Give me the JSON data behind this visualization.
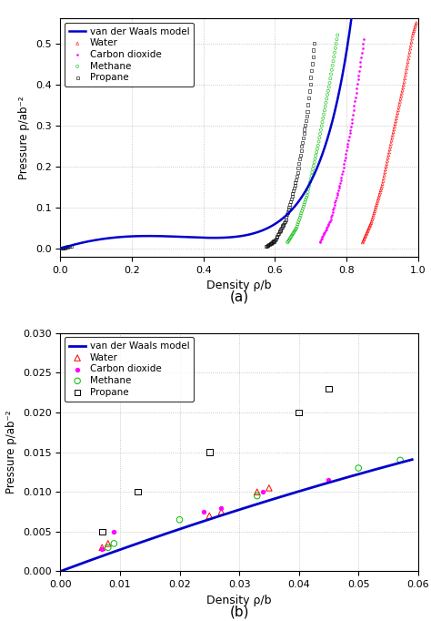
{
  "vdw_color": "#0000cc",
  "water_color": "#ff0000",
  "co2_color": "#ff00ff",
  "methane_color": "#00bb00",
  "propane_color": "#000000",
  "subplot_a": {
    "xlim": [
      0,
      1.0
    ],
    "ylim": [
      -0.02,
      0.56
    ],
    "yticks": [
      0.0,
      0.1,
      0.2,
      0.3,
      0.4,
      0.5
    ],
    "xticks": [
      0.0,
      0.2,
      0.4,
      0.6,
      0.8,
      1.0
    ],
    "xlabel": "Density ρ/b",
    "ylabel": "Pressure p/ab⁻²",
    "label": "(a)"
  },
  "subplot_b": {
    "xlim": [
      0,
      0.06
    ],
    "ylim": [
      0,
      0.03
    ],
    "yticks": [
      0.0,
      0.005,
      0.01,
      0.015,
      0.02,
      0.025,
      0.03
    ],
    "xticks": [
      0.0,
      0.01,
      0.02,
      0.03,
      0.04,
      0.05,
      0.06
    ],
    "xlabel": "Density ρ/b",
    "ylabel": "Pressure p/ab⁻²",
    "label": "(b)"
  },
  "water_b_rho": [
    0.007,
    0.008,
    0.025,
    0.027,
    0.033,
    0.035
  ],
  "water_b_p": [
    0.003,
    0.0035,
    0.007,
    0.0075,
    0.01,
    0.0105
  ],
  "co2_b_rho": [
    0.007,
    0.009,
    0.024,
    0.027,
    0.034,
    0.045
  ],
  "co2_b_p": [
    0.0028,
    0.005,
    0.0075,
    0.008,
    0.01,
    0.0115
  ],
  "methane_b_rho": [
    0.008,
    0.009,
    0.02,
    0.033,
    0.05,
    0.057
  ],
  "methane_b_p": [
    0.003,
    0.0035,
    0.0065,
    0.0095,
    0.013,
    0.014
  ],
  "propane_b_rho": [
    0.007,
    0.013,
    0.025,
    0.04,
    0.045
  ],
  "propane_b_p": [
    0.005,
    0.01,
    0.015,
    0.02,
    0.023
  ]
}
